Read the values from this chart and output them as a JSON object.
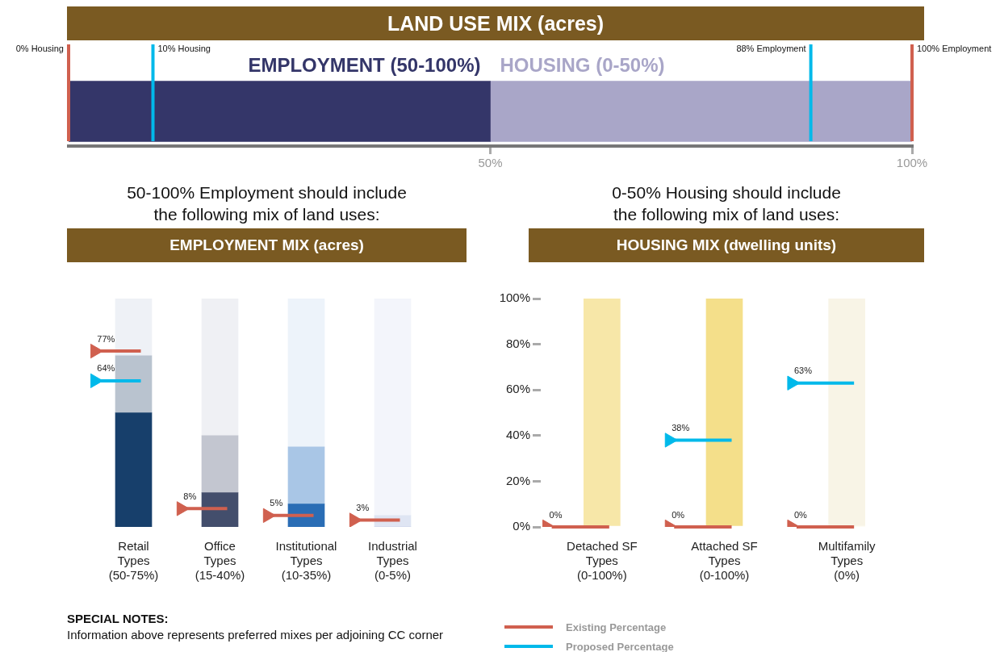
{
  "chart_data": [
    {
      "type": "bar",
      "title": "LAND USE MIX (acres)",
      "orientation": "horizontal",
      "stacked": true,
      "categories": [
        null
      ],
      "series": [
        {
          "name": "EMPLOYMENT (50-100%)",
          "color": "#343669",
          "values": [
            50
          ]
        },
        {
          "name": "HOUSING (0-50%)",
          "color": "#a9a6c8",
          "values": [
            50
          ]
        }
      ],
      "xlim": [
        0,
        100
      ],
      "xticks": [
        {
          "value": 50,
          "label": "50%"
        },
        {
          "value": 100,
          "label": "100%"
        }
      ],
      "tick_labels": "x",
      "grid": false,
      "legend": false,
      "ref_lines": [
        {
          "axis": "x",
          "value": 0,
          "label": "0% Housing",
          "color": "#d0604f"
        },
        {
          "axis": "x",
          "value": 10,
          "label": "10% Housing",
          "color": "#00b9ea"
        },
        {
          "axis": "x",
          "value": 88,
          "label": "88% Employment",
          "color": "#00b9ea"
        },
        {
          "axis": "x",
          "value": 100,
          "label": "100% Employment",
          "color": "#d0604f"
        }
      ]
    },
    {
      "type": "bar",
      "title": "EMPLOYMENT MIX (acres)",
      "subtitle": "50-100% Employment should include\nthe following mix of land uses:",
      "stacked": true,
      "categories": [
        "Retail\nTypes\n(50-75%)",
        "Office\nTypes\n(15-40%)",
        "Institutional\nTypes\n(10-35%)",
        "Industrial\nTypes\n(0-5%)"
      ],
      "series": [
        {
          "colors": [
            "#173f6b",
            "#434e6c",
            "#2a6db5",
            "#b3c0e0"
          ],
          "values": [
            50,
            15,
            10,
            0
          ]
        },
        {
          "colors": [
            "#b9c3cf",
            "#c3c6d0",
            "#a9c6e6",
            "#dfe5f3"
          ],
          "values": [
            25,
            25,
            25,
            5
          ]
        },
        {
          "colors": [
            "#eef1f6",
            "#eff0f4",
            "#edf3fa",
            "#f3f5fb"
          ],
          "values": [
            25,
            60,
            65,
            95
          ]
        },
        {
          "type": "scatter",
          "color": "#d0604f",
          "values": [
            77,
            8,
            5,
            3
          ],
          "value_labels": [
            "77%",
            "8%",
            "5%",
            "3%"
          ]
        },
        {
          "type": "scatter",
          "color": "#00b9ea",
          "values": [
            64,
            null,
            null,
            null
          ],
          "value_labels": [
            "64%",
            null,
            null,
            null
          ]
        }
      ],
      "ylim": [
        0,
        100
      ],
      "tick_labels": "x",
      "grid": false,
      "legend": false,
      "marker": "triangle",
      "annotations": [
        "SPECIAL NOTES:",
        "Information above represents preferred mixes per adjoining CC corner"
      ]
    },
    {
      "type": "bar",
      "title": "HOUSING MIX (dwelling units)",
      "subtitle": "0-50% Housing should include\nthe following mix of land uses:",
      "stacked": true,
      "categories": [
        "Detached SF\nTypes\n(0-100%)",
        "Attached SF\nTypes\n(0-100%)",
        "Multifamily\nTypes\n(0%)"
      ],
      "series": [
        {
          "colors": [
            "#f7e7a8",
            "#f4df8a",
            "#f9f2d4"
          ],
          "values": [
            100,
            100,
            0
          ]
        },
        {
          "colors": [
            "#ffffff",
            "#ffffff",
            "#f8f4e6"
          ],
          "values": [
            0,
            0,
            100
          ]
        },
        {
          "type": "scatter",
          "name": "Existing Percentage",
          "color": "#d0604f",
          "values": [
            0,
            0,
            0
          ],
          "value_labels": [
            "0%",
            "0%",
            "0%"
          ]
        },
        {
          "type": "scatter",
          "name": "Proposed Percentage",
          "color": "#00b9ea",
          "values": [
            null,
            38,
            63
          ],
          "value_labels": [
            null,
            "38%",
            "63%"
          ]
        }
      ],
      "ylim": [
        0,
        100
      ],
      "yticks": [
        {
          "value": 0,
          "label": "0%"
        },
        {
          "value": 20,
          "label": "20%"
        },
        {
          "value": 40,
          "label": "40%"
        },
        {
          "value": 60,
          "label": "60%"
        },
        {
          "value": 80,
          "label": "80%"
        },
        {
          "value": 100,
          "label": "100%"
        }
      ],
      "grid": false,
      "legend": "bottom",
      "marker": "triangle"
    }
  ]
}
